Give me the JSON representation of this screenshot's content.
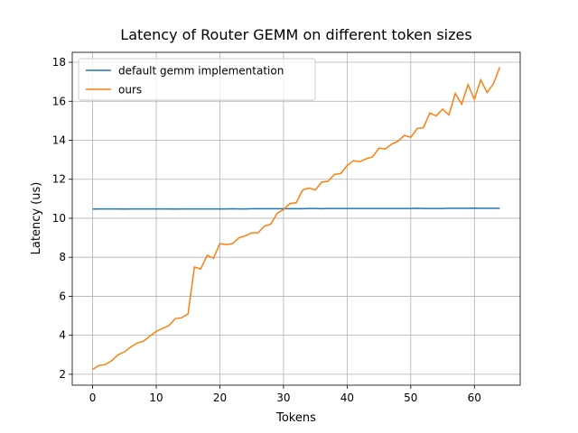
{
  "chart_data": {
    "type": "line",
    "title": "Latency of Router GEMM on different token sizes",
    "xlabel": "Tokens",
    "ylabel": "Latency (us)",
    "x": [
      0,
      1,
      2,
      3,
      4,
      5,
      6,
      7,
      8,
      9,
      10,
      11,
      12,
      13,
      14,
      15,
      16,
      17,
      18,
      19,
      20,
      21,
      22,
      23,
      24,
      25,
      26,
      27,
      28,
      29,
      30,
      31,
      32,
      33,
      34,
      35,
      36,
      37,
      38,
      39,
      40,
      41,
      42,
      43,
      44,
      45,
      46,
      47,
      48,
      49,
      50,
      51,
      52,
      53,
      54,
      55,
      56,
      57,
      58,
      59,
      60,
      61,
      62,
      63,
      64
    ],
    "series": [
      {
        "name": "default gemm implementation",
        "color": "#1f77b4",
        "values": [
          10.47,
          10.48,
          10.48,
          10.48,
          10.48,
          10.47,
          10.48,
          10.48,
          10.48,
          10.48,
          10.48,
          10.48,
          10.48,
          10.47,
          10.48,
          10.48,
          10.48,
          10.48,
          10.48,
          10.48,
          10.48,
          10.48,
          10.49,
          10.48,
          10.48,
          10.49,
          10.49,
          10.49,
          10.49,
          10.49,
          10.49,
          10.49,
          10.49,
          10.49,
          10.5,
          10.5,
          10.49,
          10.5,
          10.5,
          10.5,
          10.5,
          10.5,
          10.5,
          10.5,
          10.5,
          10.5,
          10.5,
          10.5,
          10.5,
          10.5,
          10.5,
          10.51,
          10.5,
          10.5,
          10.5,
          10.5,
          10.51,
          10.51,
          10.51,
          10.51,
          10.52,
          10.51,
          10.51,
          10.51,
          10.51
        ]
      },
      {
        "name": "ours",
        "color": "#ff7f0e",
        "values": [
          2.25,
          2.45,
          2.5,
          2.7,
          3.0,
          3.15,
          3.4,
          3.6,
          3.7,
          3.95,
          4.2,
          4.35,
          4.5,
          4.85,
          4.9,
          5.1,
          7.5,
          7.4,
          8.1,
          7.95,
          8.7,
          8.65,
          8.7,
          9.0,
          9.1,
          9.25,
          9.25,
          9.6,
          9.7,
          10.25,
          10.45,
          10.75,
          10.8,
          11.45,
          11.55,
          11.45,
          11.85,
          11.9,
          12.25,
          12.3,
          12.7,
          12.95,
          12.9,
          13.05,
          13.15,
          13.6,
          13.55,
          13.8,
          13.95,
          14.25,
          14.15,
          14.6,
          14.65,
          15.4,
          15.25,
          15.6,
          15.3,
          16.4,
          15.85,
          16.85,
          16.1,
          17.1,
          16.45,
          16.9,
          17.75
        ]
      }
    ],
    "xlim": [
      -3.2,
      67.2
    ],
    "ylim": [
      1.44,
      18.51
    ],
    "xticks": [
      0,
      10,
      20,
      30,
      40,
      50,
      60
    ],
    "yticks": [
      2,
      4,
      6,
      8,
      10,
      12,
      14,
      16,
      18
    ],
    "grid": true,
    "legend": "upper left"
  }
}
